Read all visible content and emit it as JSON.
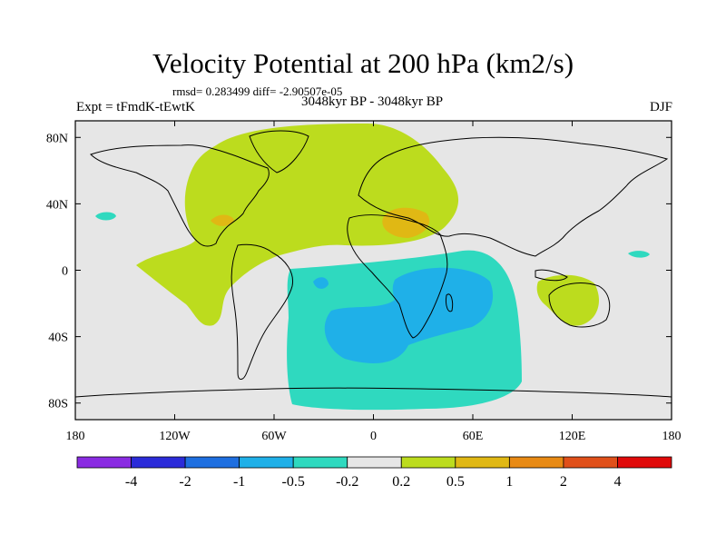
{
  "title": "Velocity Potential at 200 hPa (km2/s)",
  "stats_line": "rmsd= 0.283499 diff= -2.90507e-05",
  "experiment_label": "Expt = tFmdK-tEwtK",
  "period_label": "3048kyr BP - 3048kyr BP",
  "season_label": "DJF",
  "map": {
    "lon_range": [
      -180,
      180
    ],
    "lat_range": [
      -90,
      90
    ],
    "lat_ticks": [
      {
        "value": 80,
        "label": "80N"
      },
      {
        "value": 40,
        "label": "40N"
      },
      {
        "value": 0,
        "label": "0"
      },
      {
        "value": -40,
        "label": "40S"
      },
      {
        "value": -80,
        "label": "80S"
      }
    ],
    "lon_ticks": [
      {
        "value": -180,
        "label": "180"
      },
      {
        "value": -120,
        "label": "120W"
      },
      {
        "value": -60,
        "label": "60W"
      },
      {
        "value": 0,
        "label": "0"
      },
      {
        "value": 60,
        "label": "60E"
      },
      {
        "value": 120,
        "label": "120E"
      },
      {
        "value": 180,
        "label": "180"
      }
    ],
    "background_color": "#e6e6e6"
  },
  "colorbar": {
    "colors": [
      "#8a2be2",
      "#2b2bd9",
      "#1e6fe0",
      "#1fb0e8",
      "#2fd9bf",
      "#e6e6e6",
      "#bcdc1e",
      "#e0b814",
      "#e88a14",
      "#e0501a",
      "#e00a0a"
    ],
    "labels": [
      "-4",
      "-2",
      "-1",
      "-0.5",
      "-0.2",
      "0.2",
      "0.5",
      "1",
      "2",
      "4"
    ]
  }
}
